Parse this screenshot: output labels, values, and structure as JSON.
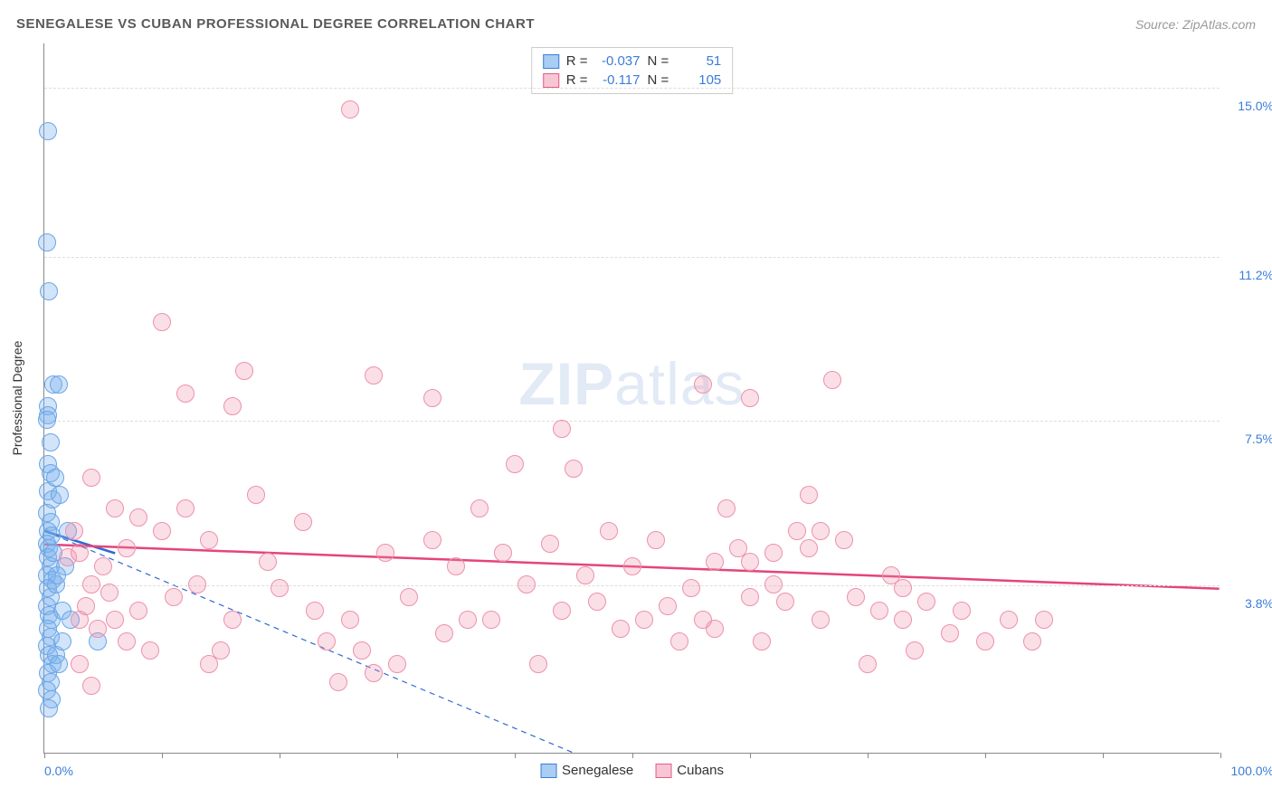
{
  "header": {
    "title": "SENEGALESE VS CUBAN PROFESSIONAL DEGREE CORRELATION CHART",
    "source": "Source: ZipAtlas.com"
  },
  "watermark": {
    "bold": "ZIP",
    "light": "atlas"
  },
  "chart": {
    "type": "scatter",
    "background_color": "#ffffff",
    "grid_color": "#dddddd",
    "axis_color": "#888888",
    "y_axis_title": "Professional Degree",
    "xlim": [
      0,
      100
    ],
    "ylim": [
      0,
      16
    ],
    "x_ticks": [
      0,
      10,
      20,
      30,
      40,
      50,
      60,
      70,
      80,
      90,
      100
    ],
    "x_label_min": "0.0%",
    "x_label_max": "100.0%",
    "y_grid": [
      {
        "v": 3.8,
        "label": "3.8%"
      },
      {
        "v": 7.5,
        "label": "7.5%"
      },
      {
        "v": 11.2,
        "label": "11.2%"
      },
      {
        "v": 15.0,
        "label": "15.0%"
      }
    ],
    "marker_radius": 10,
    "label_fontsize": 14,
    "tick_color": "#3b7dd8",
    "legend_top": {
      "rows": [
        {
          "swatch_fill": "#a9cdf3",
          "swatch_stroke": "#3b7dd8",
          "r_label": "R =",
          "r_val": "-0.037",
          "n_label": "N =",
          "n_val": "51"
        },
        {
          "swatch_fill": "#f7c6d4",
          "swatch_stroke": "#e65a88",
          "r_label": "R =",
          "r_val": "-0.117",
          "n_label": "N =",
          "n_val": "105"
        }
      ]
    },
    "legend_bottom": [
      {
        "swatch_fill": "#a9cdf3",
        "swatch_stroke": "#3b7dd8",
        "label": "Senegalese"
      },
      {
        "swatch_fill": "#f7c6d4",
        "swatch_stroke": "#e65a88",
        "label": "Cubans"
      }
    ],
    "series": [
      {
        "name": "Senegalese",
        "fill": "rgba(122,177,237,0.35)",
        "stroke": "#6aa6e6",
        "trend_color": "#2e6bd1",
        "trend_width": 2.5,
        "trend_solid": {
          "x1": 0,
          "y1": 5.0,
          "x2": 6,
          "y2": 4.5
        },
        "trend_dashed": {
          "x1": 0,
          "y1": 5.0,
          "x2": 45,
          "y2": 0
        },
        "points": [
          [
            0.3,
            14.0
          ],
          [
            0.2,
            11.5
          ],
          [
            0.4,
            10.4
          ],
          [
            0.8,
            8.3
          ],
          [
            1.2,
            8.3
          ],
          [
            0.3,
            7.8
          ],
          [
            0.3,
            7.6
          ],
          [
            0.5,
            7.0
          ],
          [
            0.2,
            7.5
          ],
          [
            0.3,
            6.5
          ],
          [
            0.5,
            6.3
          ],
          [
            0.3,
            5.9
          ],
          [
            0.7,
            5.7
          ],
          [
            0.2,
            5.4
          ],
          [
            0.5,
            5.2
          ],
          [
            0.3,
            5.0
          ],
          [
            0.6,
            4.9
          ],
          [
            0.2,
            4.7
          ],
          [
            0.4,
            4.6
          ],
          [
            0.3,
            4.4
          ],
          [
            0.5,
            4.2
          ],
          [
            0.2,
            4.0
          ],
          [
            0.7,
            3.9
          ],
          [
            0.3,
            3.7
          ],
          [
            0.5,
            3.5
          ],
          [
            0.2,
            3.3
          ],
          [
            0.4,
            3.1
          ],
          [
            0.6,
            3.0
          ],
          [
            0.3,
            2.8
          ],
          [
            0.5,
            2.6
          ],
          [
            0.2,
            2.4
          ],
          [
            0.4,
            2.2
          ],
          [
            0.7,
            2.0
          ],
          [
            1.0,
            2.2
          ],
          [
            0.3,
            1.8
          ],
          [
            0.5,
            1.6
          ],
          [
            0.2,
            1.4
          ],
          [
            0.6,
            1.2
          ],
          [
            1.2,
            2.0
          ],
          [
            0.4,
            1.0
          ],
          [
            4.5,
            2.5
          ],
          [
            1.5,
            3.2
          ],
          [
            1.8,
            4.2
          ],
          [
            2.0,
            5.0
          ],
          [
            1.3,
            5.8
          ],
          [
            0.8,
            4.5
          ],
          [
            1.0,
            3.8
          ],
          [
            1.5,
            2.5
          ],
          [
            2.2,
            3.0
          ],
          [
            0.9,
            6.2
          ],
          [
            1.1,
            4.0
          ]
        ]
      },
      {
        "name": "Cubans",
        "fill": "rgba(240,140,170,0.28)",
        "stroke": "#ec91ae",
        "trend_color": "#e5447a",
        "trend_width": 2.5,
        "trend_solid": {
          "x1": 0,
          "y1": 4.7,
          "x2": 100,
          "y2": 3.7
        },
        "points": [
          [
            26,
            14.5
          ],
          [
            10,
            9.7
          ],
          [
            12,
            8.1
          ],
          [
            17,
            8.6
          ],
          [
            28,
            8.5
          ],
          [
            33,
            8.0
          ],
          [
            44,
            7.3
          ],
          [
            56,
            8.3
          ],
          [
            60,
            8.0
          ],
          [
            4,
            6.2
          ],
          [
            6,
            5.5
          ],
          [
            8,
            5.3
          ],
          [
            10,
            5.0
          ],
          [
            12,
            5.5
          ],
          [
            14,
            4.8
          ],
          [
            16,
            7.8
          ],
          [
            18,
            5.8
          ],
          [
            19,
            4.3
          ],
          [
            20,
            3.7
          ],
          [
            22,
            5.2
          ],
          [
            23,
            3.2
          ],
          [
            24,
            2.5
          ],
          [
            25,
            1.6
          ],
          [
            26,
            3.0
          ],
          [
            27,
            2.3
          ],
          [
            28,
            1.8
          ],
          [
            29,
            4.5
          ],
          [
            30,
            2.0
          ],
          [
            31,
            3.5
          ],
          [
            33,
            4.8
          ],
          [
            34,
            2.7
          ],
          [
            35,
            4.2
          ],
          [
            36,
            3.0
          ],
          [
            37,
            5.5
          ],
          [
            38,
            3.0
          ],
          [
            39,
            4.5
          ],
          [
            40,
            6.5
          ],
          [
            41,
            3.8
          ],
          [
            42,
            2.0
          ],
          [
            43,
            4.7
          ],
          [
            44,
            3.2
          ],
          [
            45,
            6.4
          ],
          [
            46,
            4.0
          ],
          [
            47,
            3.4
          ],
          [
            48,
            5.0
          ],
          [
            49,
            2.8
          ],
          [
            50,
            4.2
          ],
          [
            51,
            3.0
          ],
          [
            52,
            4.8
          ],
          [
            53,
            3.3
          ],
          [
            54,
            2.5
          ],
          [
            55,
            3.7
          ],
          [
            56,
            3.0
          ],
          [
            57,
            4.3
          ],
          [
            58,
            5.5
          ],
          [
            60,
            3.5
          ],
          [
            61,
            2.5
          ],
          [
            62,
            4.5
          ],
          [
            63,
            3.4
          ],
          [
            64,
            5.0
          ],
          [
            65,
            5.8
          ],
          [
            66,
            3.0
          ],
          [
            67,
            8.4
          ],
          [
            68,
            4.8
          ],
          [
            69,
            3.5
          ],
          [
            70,
            2.0
          ],
          [
            71,
            3.2
          ],
          [
            72,
            4.0
          ],
          [
            73,
            3.0
          ],
          [
            74,
            2.3
          ],
          [
            75,
            3.4
          ],
          [
            77,
            2.7
          ],
          [
            78,
            3.2
          ],
          [
            80,
            2.5
          ],
          [
            82,
            3.0
          ],
          [
            84,
            2.5
          ],
          [
            85,
            3.0
          ],
          [
            3,
            4.5
          ],
          [
            4,
            3.8
          ],
          [
            5,
            4.2
          ],
          [
            6,
            3.0
          ],
          [
            7,
            4.6
          ],
          [
            3.5,
            3.3
          ],
          [
            4.5,
            2.8
          ],
          [
            5.5,
            3.6
          ],
          [
            7,
            2.5
          ],
          [
            8,
            3.2
          ],
          [
            2,
            4.4
          ],
          [
            3,
            3.0
          ],
          [
            2.5,
            5.0
          ],
          [
            15,
            2.3
          ],
          [
            16,
            3.0
          ],
          [
            13,
            3.8
          ],
          [
            14,
            2.0
          ],
          [
            11,
            3.5
          ],
          [
            9,
            2.3
          ],
          [
            3,
            2.0
          ],
          [
            4,
            1.5
          ],
          [
            65,
            4.6
          ],
          [
            66,
            5.0
          ],
          [
            62,
            3.8
          ],
          [
            59,
            4.6
          ],
          [
            57,
            2.8
          ],
          [
            73,
            3.7
          ],
          [
            60,
            4.3
          ]
        ]
      }
    ]
  }
}
